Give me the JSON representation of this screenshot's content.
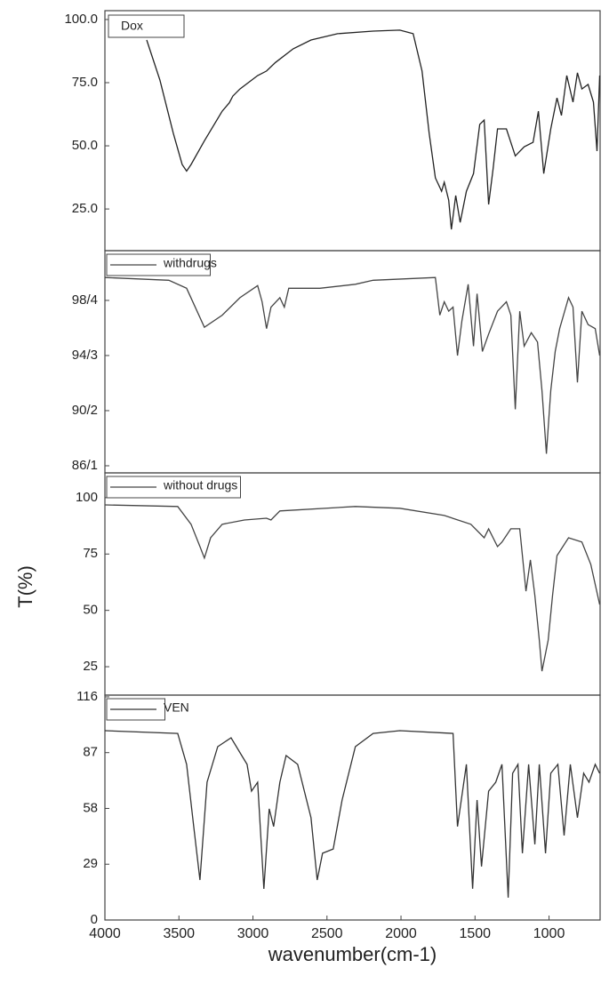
{
  "chart_data": [
    {
      "type": "line",
      "xlim": [
        4000,
        655
      ],
      "ylim": [
        8.5,
        103.5
      ],
      "yticks": [
        {
          "value": 100,
          "label": "100.0"
        },
        {
          "value": 75,
          "label": "75.0"
        },
        {
          "value": 50,
          "label": "50.0"
        },
        {
          "value": 25,
          "label": "25.0"
        }
      ],
      "x": [
        3718,
        3628,
        3538,
        3478,
        3448,
        3418,
        3328,
        3208,
        3160,
        3136,
        3088,
        2968,
        2908,
        2848,
        2728,
        2608,
        2428,
        2188,
        2008,
        1918,
        1858,
        1810,
        1768,
        1726,
        1708,
        1678,
        1660,
        1630,
        1600,
        1558,
        1510,
        1468,
        1438,
        1408,
        1378,
        1348,
        1288,
        1228,
        1168,
        1108,
        1072,
        1036,
        988,
        946,
        916,
        880,
        838,
        808,
        778,
        736,
        700,
        676,
        658
      ],
      "series": [
        {
          "name": "Dox",
          "color": "#222222",
          "values": [
            91.9,
            76,
            55,
            42.6,
            40,
            42.6,
            52,
            63.7,
            67,
            69.7,
            72.5,
            77.8,
            79.6,
            83,
            88.4,
            91.9,
            94.4,
            95.4,
            95.8,
            94.4,
            79.6,
            55,
            37.3,
            32,
            35.6,
            28.5,
            16.9,
            30.3,
            19.7,
            32,
            39,
            58.5,
            60.2,
            26.8,
            40.8,
            56.7,
            56.7,
            46,
            49.6,
            51.4,
            63.7,
            39,
            56.7,
            69,
            62,
            77.8,
            67.3,
            78.9,
            72.5,
            74.3,
            67.3,
            47.9,
            77.8
          ]
        }
      ]
    },
    {
      "type": "line",
      "xlim": [
        4000,
        655
      ],
      "ylim": [
        85.57,
        102.1
      ],
      "yticks": [
        {
          "value": 98.4,
          "label": "98/4"
        },
        {
          "value": 94.3,
          "label": "94/3"
        },
        {
          "value": 90.2,
          "label": "90/2"
        },
        {
          "value": 86.1,
          "label": "86/1"
        }
      ],
      "x": [
        4000,
        3568,
        3448,
        3328,
        3208,
        3088,
        2968,
        2938,
        2908,
        2878,
        2818,
        2788,
        2758,
        2548,
        2308,
        2188,
        1768,
        1738,
        1708,
        1678,
        1648,
        1618,
        1588,
        1546,
        1510,
        1486,
        1450,
        1408,
        1348,
        1288,
        1258,
        1228,
        1198,
        1168,
        1120,
        1078,
        1048,
        1018,
        988,
        958,
        928,
        868,
        838,
        808,
        778,
        736,
        688,
        658
      ],
      "series": [
        {
          "name": "withdrugs",
          "color": "#444444",
          "values": [
            100.1,
            99.9,
            99.3,
            96.4,
            97.3,
            98.6,
            99.5,
            98.3,
            96.3,
            97.9,
            98.6,
            97.9,
            99.3,
            99.3,
            99.6,
            99.9,
            100.1,
            97.3,
            98.3,
            97.6,
            97.9,
            94.3,
            96.9,
            99.6,
            95,
            98.9,
            94.6,
            95.9,
            97.6,
            98.3,
            97.3,
            90.3,
            97.6,
            95,
            96,
            95.3,
            91.7,
            87,
            91.7,
            94.6,
            96.3,
            98.6,
            97.9,
            92.3,
            97.6,
            96.6,
            96.3,
            94.3
          ]
        }
      ]
    },
    {
      "type": "line",
      "xlim": [
        4000,
        655
      ],
      "ylim": [
        12.4,
        111
      ],
      "yticks": [
        100,
        75,
        50,
        25
      ],
      "ylabel": "T(%)",
      "x": [
        4000,
        3508,
        3418,
        3358,
        3328,
        3286,
        3208,
        3058,
        2908,
        2878,
        2818,
        2308,
        2008,
        1708,
        1528,
        1438,
        1408,
        1348,
        1318,
        1258,
        1198,
        1156,
        1126,
        1096,
        1066,
        1048,
        1030,
        1006,
        976,
        946,
        868,
        778,
        718,
        658
      ],
      "series": [
        {
          "name": "without drugs",
          "color": "#444444",
          "values": [
            96.8,
            96.1,
            88.2,
            78.3,
            73.2,
            82.2,
            88.2,
            90.1,
            90.9,
            90.1,
            94.1,
            96.1,
            95.3,
            92.1,
            88.2,
            82.2,
            86.2,
            78.3,
            80.3,
            86.2,
            86.2,
            58.5,
            72.4,
            56.6,
            36.8,
            23,
            28.9,
            36.8,
            56.6,
            74.3,
            82.2,
            80.3,
            70.4,
            52.6
          ]
        }
      ]
    },
    {
      "type": "line",
      "xlim": [
        4000,
        655
      ],
      "ylim": [
        0,
        116.9
      ],
      "yticks": [
        116,
        87,
        58,
        29,
        0
      ],
      "xticks": [
        4000,
        3500,
        3000,
        2500,
        2000,
        1500,
        1000
      ],
      "xlabel": "wavenumber(cm-1)",
      "x": [
        4000,
        3508,
        3448,
        3400,
        3358,
        3310,
        3238,
        3148,
        3076,
        3040,
        3010,
        2968,
        2926,
        2890,
        2860,
        2818,
        2776,
        2698,
        2608,
        2566,
        2530,
        2458,
        2398,
        2308,
        2188,
        2008,
        1648,
        1618,
        1558,
        1516,
        1486,
        1456,
        1408,
        1360,
        1318,
        1276,
        1246,
        1210,
        1180,
        1138,
        1096,
        1066,
        1024,
        988,
        940,
        898,
        856,
        808,
        766,
        730,
        688,
        658
      ],
      "series": [
        {
          "name": "VEN",
          "color": "#333333",
          "values": [
            98.4,
            97,
            80.9,
            48.6,
            20.8,
            71.6,
            90.1,
            94.7,
            85.5,
            80.9,
            67,
            71.6,
            16.2,
            57.8,
            48.6,
            71.6,
            85.5,
            80.9,
            53.2,
            20.8,
            34.7,
            36.9,
            62.4,
            90.1,
            97,
            98.4,
            97,
            48.6,
            80.9,
            16.2,
            62.4,
            27.8,
            67,
            71.6,
            80.9,
            11.6,
            76.3,
            80.9,
            34.7,
            80.9,
            39.3,
            80.9,
            34.7,
            76.3,
            80.9,
            43.9,
            80.9,
            53.2,
            76.3,
            71.6,
            80.9,
            76.3
          ]
        }
      ]
    }
  ]
}
